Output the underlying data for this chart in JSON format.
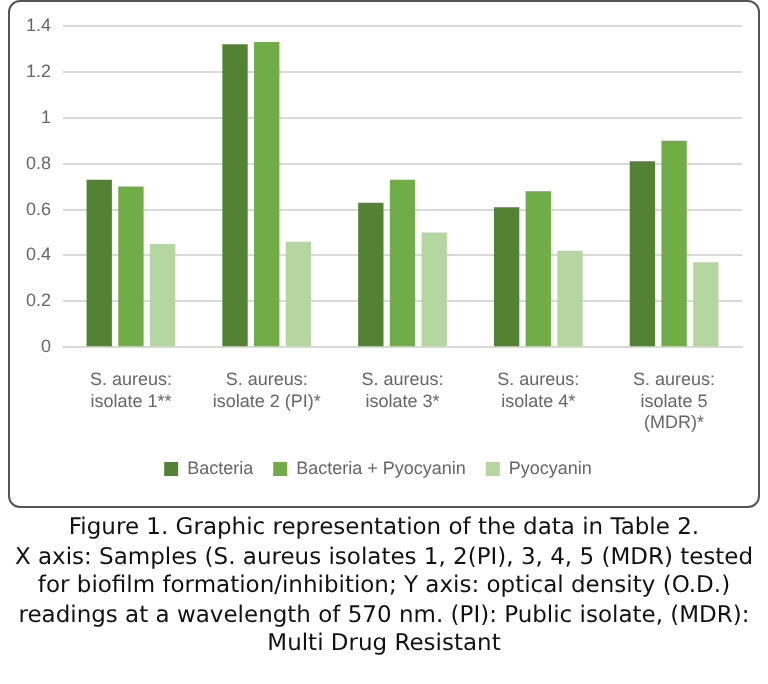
{
  "chart_data": {
    "type": "bar",
    "title": "Figure 1. Graphic representation of the data in Table 2.",
    "annotations": [
      "X axis: Samples (S. aureus isolates 1, 2(PI), 3, 4, 5 (MDR) tested for biofilm formation/inhibition; Y axis: optical density (O.D.) readings at a wavelength of 570 nm. (PI): Public isolate, (MDR): Multi Drug Resistant"
    ],
    "categories": [
      "S. aureus: isolate 1**",
      "S. aureus: isolate 2 (PI)*",
      "S. aureus: isolate 3*",
      "S. aureus: isolate 4*",
      "S. aureus: isolate 5 (MDR)*"
    ],
    "series": [
      {
        "name": "Bacteria",
        "color": "#548235",
        "values": [
          0.73,
          1.32,
          0.63,
          0.61,
          0.81
        ]
      },
      {
        "name": "Bacteria + Pyocyanin",
        "color": "#70ad47",
        "values": [
          0.7,
          1.33,
          0.73,
          0.68,
          0.9
        ]
      },
      {
        "name": "Pyocyanin",
        "color": "#b5d6a0",
        "values": [
          0.45,
          0.46,
          0.5,
          0.42,
          0.37
        ]
      }
    ],
    "ylim": [
      0,
      1.4
    ],
    "yticks": [
      0,
      0.2,
      0.4,
      0.6,
      0.8,
      1,
      1.2,
      1.4
    ],
    "grid": "y",
    "legend": "bottom"
  }
}
